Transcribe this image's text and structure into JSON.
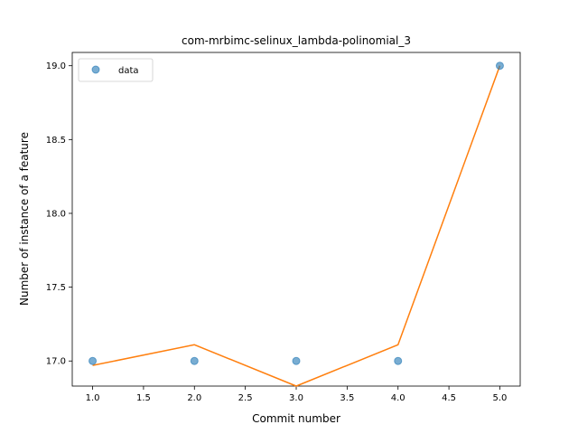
{
  "chart_data": {
    "type": "line",
    "title": "com-mrbimc-selinux_lambda-polinomial_3",
    "xlabel": "Commit number",
    "ylabel": "Number of instance of a feature",
    "xlim": [
      0.8,
      5.2
    ],
    "ylim": [
      16.83,
      19.09
    ],
    "xticks": [
      "1.0",
      "1.5",
      "2.0",
      "2.5",
      "3.0",
      "3.5",
      "4.0",
      "4.5",
      "5.0"
    ],
    "yticks": [
      "17.0",
      "17.5",
      "18.0",
      "18.5",
      "19.0"
    ],
    "legend": {
      "position": "top-left",
      "entries": [
        "data"
      ]
    },
    "grid": false,
    "series": [
      {
        "name": "data",
        "kind": "scatter",
        "color": "#1f77b4",
        "x": [
          1,
          2,
          3,
          4,
          5
        ],
        "y": [
          17,
          17,
          17,
          17,
          19
        ]
      },
      {
        "kind": "line",
        "color": "#ff7f0e",
        "x": [
          1,
          2,
          3,
          4,
          5
        ],
        "y": [
          16.97,
          17.11,
          16.83,
          17.11,
          19.0
        ]
      }
    ]
  }
}
